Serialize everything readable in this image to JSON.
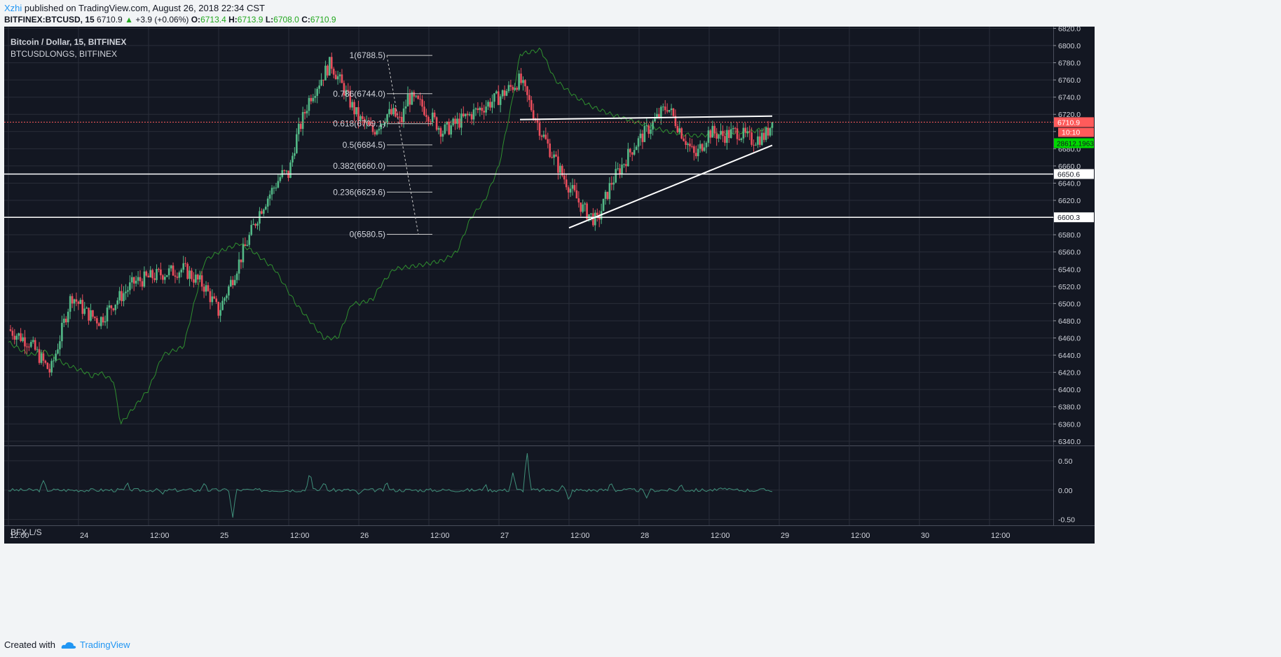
{
  "header": {
    "user": "Xzhi",
    "published_text": "published on TradingView.com, August 26, 2018 22:34 CST",
    "symbol": "BITFINEX:BTCUSD, 15",
    "last": "6710.9",
    "change": "+3.9 (+0.06%)",
    "o_label": "O:",
    "o_value": "6713.4",
    "h_label": "H:",
    "h_value": "6713.9",
    "l_label": "L:",
    "l_value": "6708.0",
    "c_label": "C:",
    "c_value": "6710.9"
  },
  "legend": {
    "main": "Bitcoin / Dollar, 15, BITFINEX",
    "secondary": "BTCUSDLONGS, BITFINEX",
    "indicator": "BFX L/S"
  },
  "footer": {
    "created_with": "Created with",
    "brand": "TradingView"
  },
  "colors": {
    "background": "#131722",
    "grid": "#2a2e39",
    "up": "#53b987",
    "down": "#eb4d5c",
    "longs_line": "#2f8f2f",
    "oscillator": "#3f8f7a",
    "fib": "#c8c8c8",
    "last_price_badge": "#ff5b5b",
    "longs_badge": "#00d800"
  },
  "chart_data": [
    {
      "type": "line",
      "title": "Bitcoin / Dollar, 15, BITFINEX",
      "subtitle": "BTCUSDLONGS, BITFINEX",
      "x_ticks": [
        "12:00",
        "24",
        "12:00",
        "25",
        "12:00",
        "26",
        "12:00",
        "27",
        "12:00",
        "28",
        "12:00",
        "29",
        "12:00",
        "30",
        "12:00"
      ],
      "y_ticks": [
        6340.0,
        6360.0,
        6380.0,
        6400.0,
        6420.0,
        6440.0,
        6460.0,
        6480.0,
        6500.0,
        6520.0,
        6540.0,
        6560.0,
        6580.0,
        6600.0,
        6620.0,
        6640.0,
        6660.0,
        6680.0,
        6700.0,
        6720.0,
        6740.0,
        6760.0,
        6780.0,
        6800.0,
        6820.0
      ],
      "ylim": [
        6335,
        6822
      ],
      "price_path": {
        "x": [
          0,
          0.3,
          0.6,
          0.9,
          1.1,
          1.3,
          1.5,
          1.8,
          2.2,
          2.5,
          2.8,
          3.0,
          3.3,
          3.6,
          3.9,
          4.0,
          4.1,
          4.3,
          4.6,
          4.9,
          5.0,
          5.2,
          5.4,
          5.5,
          5.6,
          5.7,
          5.9,
          6.2,
          6.6,
          7.0,
          7.3,
          7.6,
          7.9,
          8.2,
          8.4,
          8.6,
          8.9,
          9.2,
          9.4,
          9.6,
          9.8,
          10.0,
          10.2,
          10.4,
          10.6,
          10.8,
          10.9
        ],
        "y": [
          6470,
          6455,
          6420,
          6510,
          6490,
          6480,
          6500,
          6525,
          6535,
          6540,
          6520,
          6490,
          6550,
          6610,
          6650,
          6650,
          6690,
          6740,
          6780,
          6730,
          6715,
          6700,
          6720,
          6720,
          6710,
          6740,
          6730,
          6700,
          6720,
          6740,
          6760,
          6700,
          6650,
          6610,
          6595,
          6640,
          6680,
          6710,
          6730,
          6700,
          6670,
          6700,
          6695,
          6700,
          6690,
          6695,
          6710.9
        ]
      },
      "longs_series": {
        "name": "BTCUSDLONGS",
        "x": [
          0,
          0.3,
          0.5,
          0.8,
          1.1,
          1.2,
          1.3,
          1.5,
          1.6,
          1.8,
          2.0,
          2.1,
          2.2,
          2.5,
          2.8,
          3.0,
          3.3,
          3.5,
          3.8,
          4.1,
          4.5,
          4.7,
          4.8,
          4.9,
          5.0,
          5.2,
          5.3,
          5.5,
          5.9,
          6.2,
          6.4,
          6.6,
          6.8,
          7.0,
          7.2,
          7.3,
          7.6,
          7.8,
          8.1,
          8.3,
          8.6,
          9.0,
          9.4,
          9.8,
          10.2,
          10.6,
          10.9
        ],
        "y": [
          6455,
          6440,
          6445,
          6430,
          6420,
          6415,
          6420,
          6410,
          6360,
          6380,
          6400,
          6420,
          6440,
          6450,
          6550,
          6560,
          6570,
          6560,
          6540,
          6500,
          6460,
          6460,
          6480,
          6500,
          6500,
          6505,
          6520,
          6540,
          6545,
          6550,
          6560,
          6600,
          6620,
          6660,
          6740,
          6790,
          6795,
          6760,
          6740,
          6730,
          6720,
          6710,
          6700,
          6695,
          6698,
          6700,
          6705
        ]
      },
      "fibonacci": [
        {
          "level": "1",
          "price": 6788.5,
          "label": "1(6788.5)"
        },
        {
          "level": "0.786",
          "price": 6744.0,
          "label": "0.786(6744.0)"
        },
        {
          "level": "0.618",
          "price": 6709.1,
          "label": "0.618(6709.1)"
        },
        {
          "level": "0.5",
          "price": 6684.5,
          "label": "0.5(6684.5)"
        },
        {
          "level": "0.382",
          "price": 6660.0,
          "label": "0.382(6660.0)"
        },
        {
          "level": "0.236",
          "price": 6629.6,
          "label": "0.236(6629.6)"
        },
        {
          "level": "0",
          "price": 6580.5,
          "label": "0(6580.5)"
        }
      ],
      "horizontal_lines": [
        6650.6,
        6600.3
      ],
      "trendlines": [
        {
          "name": "resistance",
          "from": [
            7.3,
            6714
          ],
          "to": [
            10.9,
            6718
          ]
        },
        {
          "name": "support",
          "from": [
            8.0,
            6588
          ],
          "to": [
            10.9,
            6684
          ]
        }
      ],
      "last_price": "6710.9",
      "last_price_color": "#ff5b5b",
      "countdown": "10:10",
      "longs_value": "28612.1963",
      "grid": true
    },
    {
      "type": "line",
      "title": "BFX L/S",
      "y_ticks": [
        -0.5,
        0.0,
        0.5
      ],
      "ylim": [
        -0.6,
        0.75
      ],
      "spikes": {
        "x": [
          0.5,
          1.7,
          2.2,
          2.8,
          3.2,
          4.3,
          4.5,
          5.0,
          5.4,
          6.8,
          7.2,
          7.4,
          7.9,
          8.0,
          8.6,
          9.1,
          9.6,
          10.2
        ],
        "y": [
          0.15,
          0.1,
          -0.08,
          0.15,
          -0.5,
          0.35,
          0.15,
          -0.1,
          0.12,
          0.1,
          0.32,
          0.7,
          0.1,
          -0.2,
          0.15,
          -0.15,
          0.1,
          0.05
        ]
      },
      "grid": true
    }
  ]
}
